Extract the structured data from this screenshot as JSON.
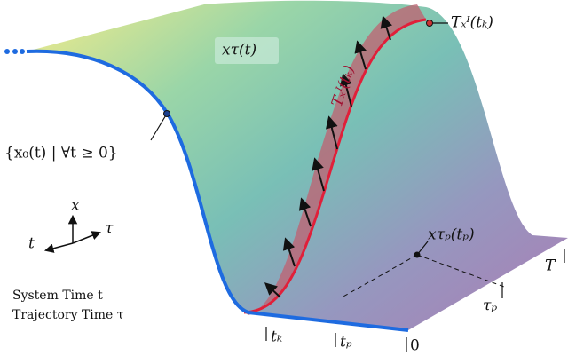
{
  "labels": {
    "surface": "xτ(t)",
    "tube": "Tₓᴵ(tₖ)",
    "tube_point": "Tₓᴵ(tₖ)",
    "system_curve": "{x₀(t) | ∀t ≥ 0}",
    "axis_x": "x",
    "axis_t": "t",
    "axis_tau": "τ",
    "point": "xτₚ(tₚ)",
    "T": "T",
    "tau_p": "τₚ",
    "t_k": "tₖ",
    "t_p": "tₚ",
    "zero": "0"
  },
  "legend": {
    "system": "System Time t",
    "trajectory": "Trajectory Time τ"
  }
}
